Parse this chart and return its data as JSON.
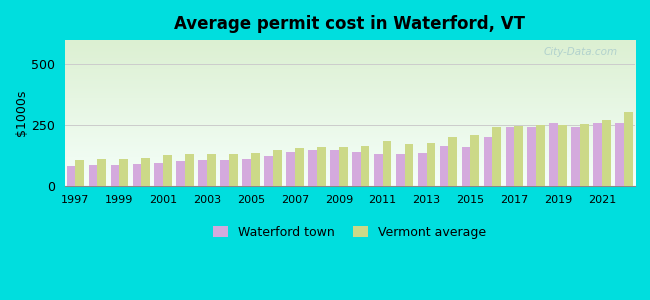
{
  "title": "Average permit cost in Waterford, VT",
  "ylabel": "$1000s",
  "background_outer": "#00dede",
  "years": [
    1997,
    1998,
    1999,
    2000,
    2001,
    2002,
    2003,
    2004,
    2005,
    2006,
    2007,
    2008,
    2009,
    2010,
    2011,
    2012,
    2013,
    2014,
    2015,
    2016,
    2017,
    2018,
    2019,
    2020,
    2021,
    2022
  ],
  "waterford": [
    80,
    85,
    85,
    90,
    95,
    100,
    105,
    105,
    110,
    120,
    140,
    145,
    145,
    140,
    130,
    130,
    135,
    165,
    160,
    200,
    240,
    240,
    260,
    240,
    260,
    260
  ],
  "vermont": [
    105,
    108,
    110,
    115,
    125,
    130,
    130,
    130,
    135,
    145,
    155,
    160,
    160,
    165,
    185,
    170,
    175,
    200,
    210,
    240,
    245,
    248,
    250,
    255,
    270,
    305
  ],
  "waterford_color": "#d4aadd",
  "vermont_color": "#ccd988",
  "ylim": [
    0,
    600
  ],
  "yticks": [
    0,
    250,
    500
  ],
  "legend_waterford": "Waterford town",
  "legend_vermont": "Vermont average"
}
